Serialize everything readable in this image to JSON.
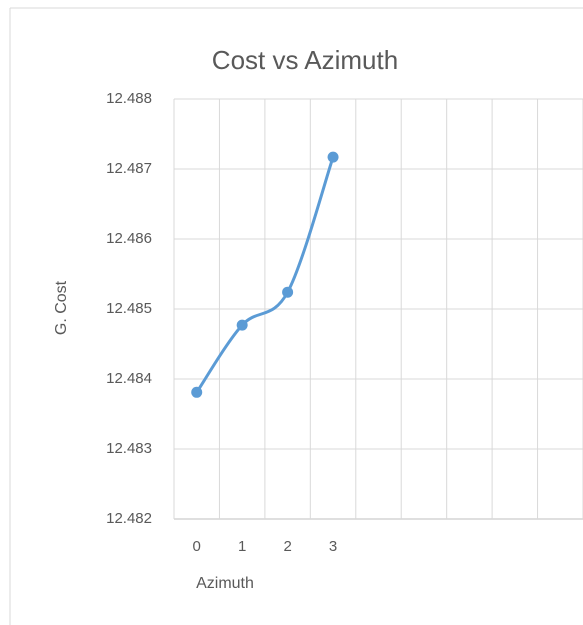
{
  "chart_data": {
    "type": "line",
    "title": "Cost vs Azimuth",
    "x_label": "Azimuth",
    "y_label": "G. Cost",
    "categories": [
      "0",
      "1",
      "2",
      "3",
      null,
      null,
      null,
      null,
      null
    ],
    "series": [
      {
        "name": "G. Cost",
        "color": "#5b9bd5",
        "values": [
          12.48381,
          12.48477,
          12.48524,
          12.48717,
          null,
          null,
          null,
          null,
          null
        ]
      }
    ],
    "ylim": [
      12.482,
      12.488
    ],
    "yticks": [
      12.482,
      12.483,
      12.484,
      12.485,
      12.486,
      12.487,
      12.488
    ],
    "grid": true,
    "smooth": true
  }
}
